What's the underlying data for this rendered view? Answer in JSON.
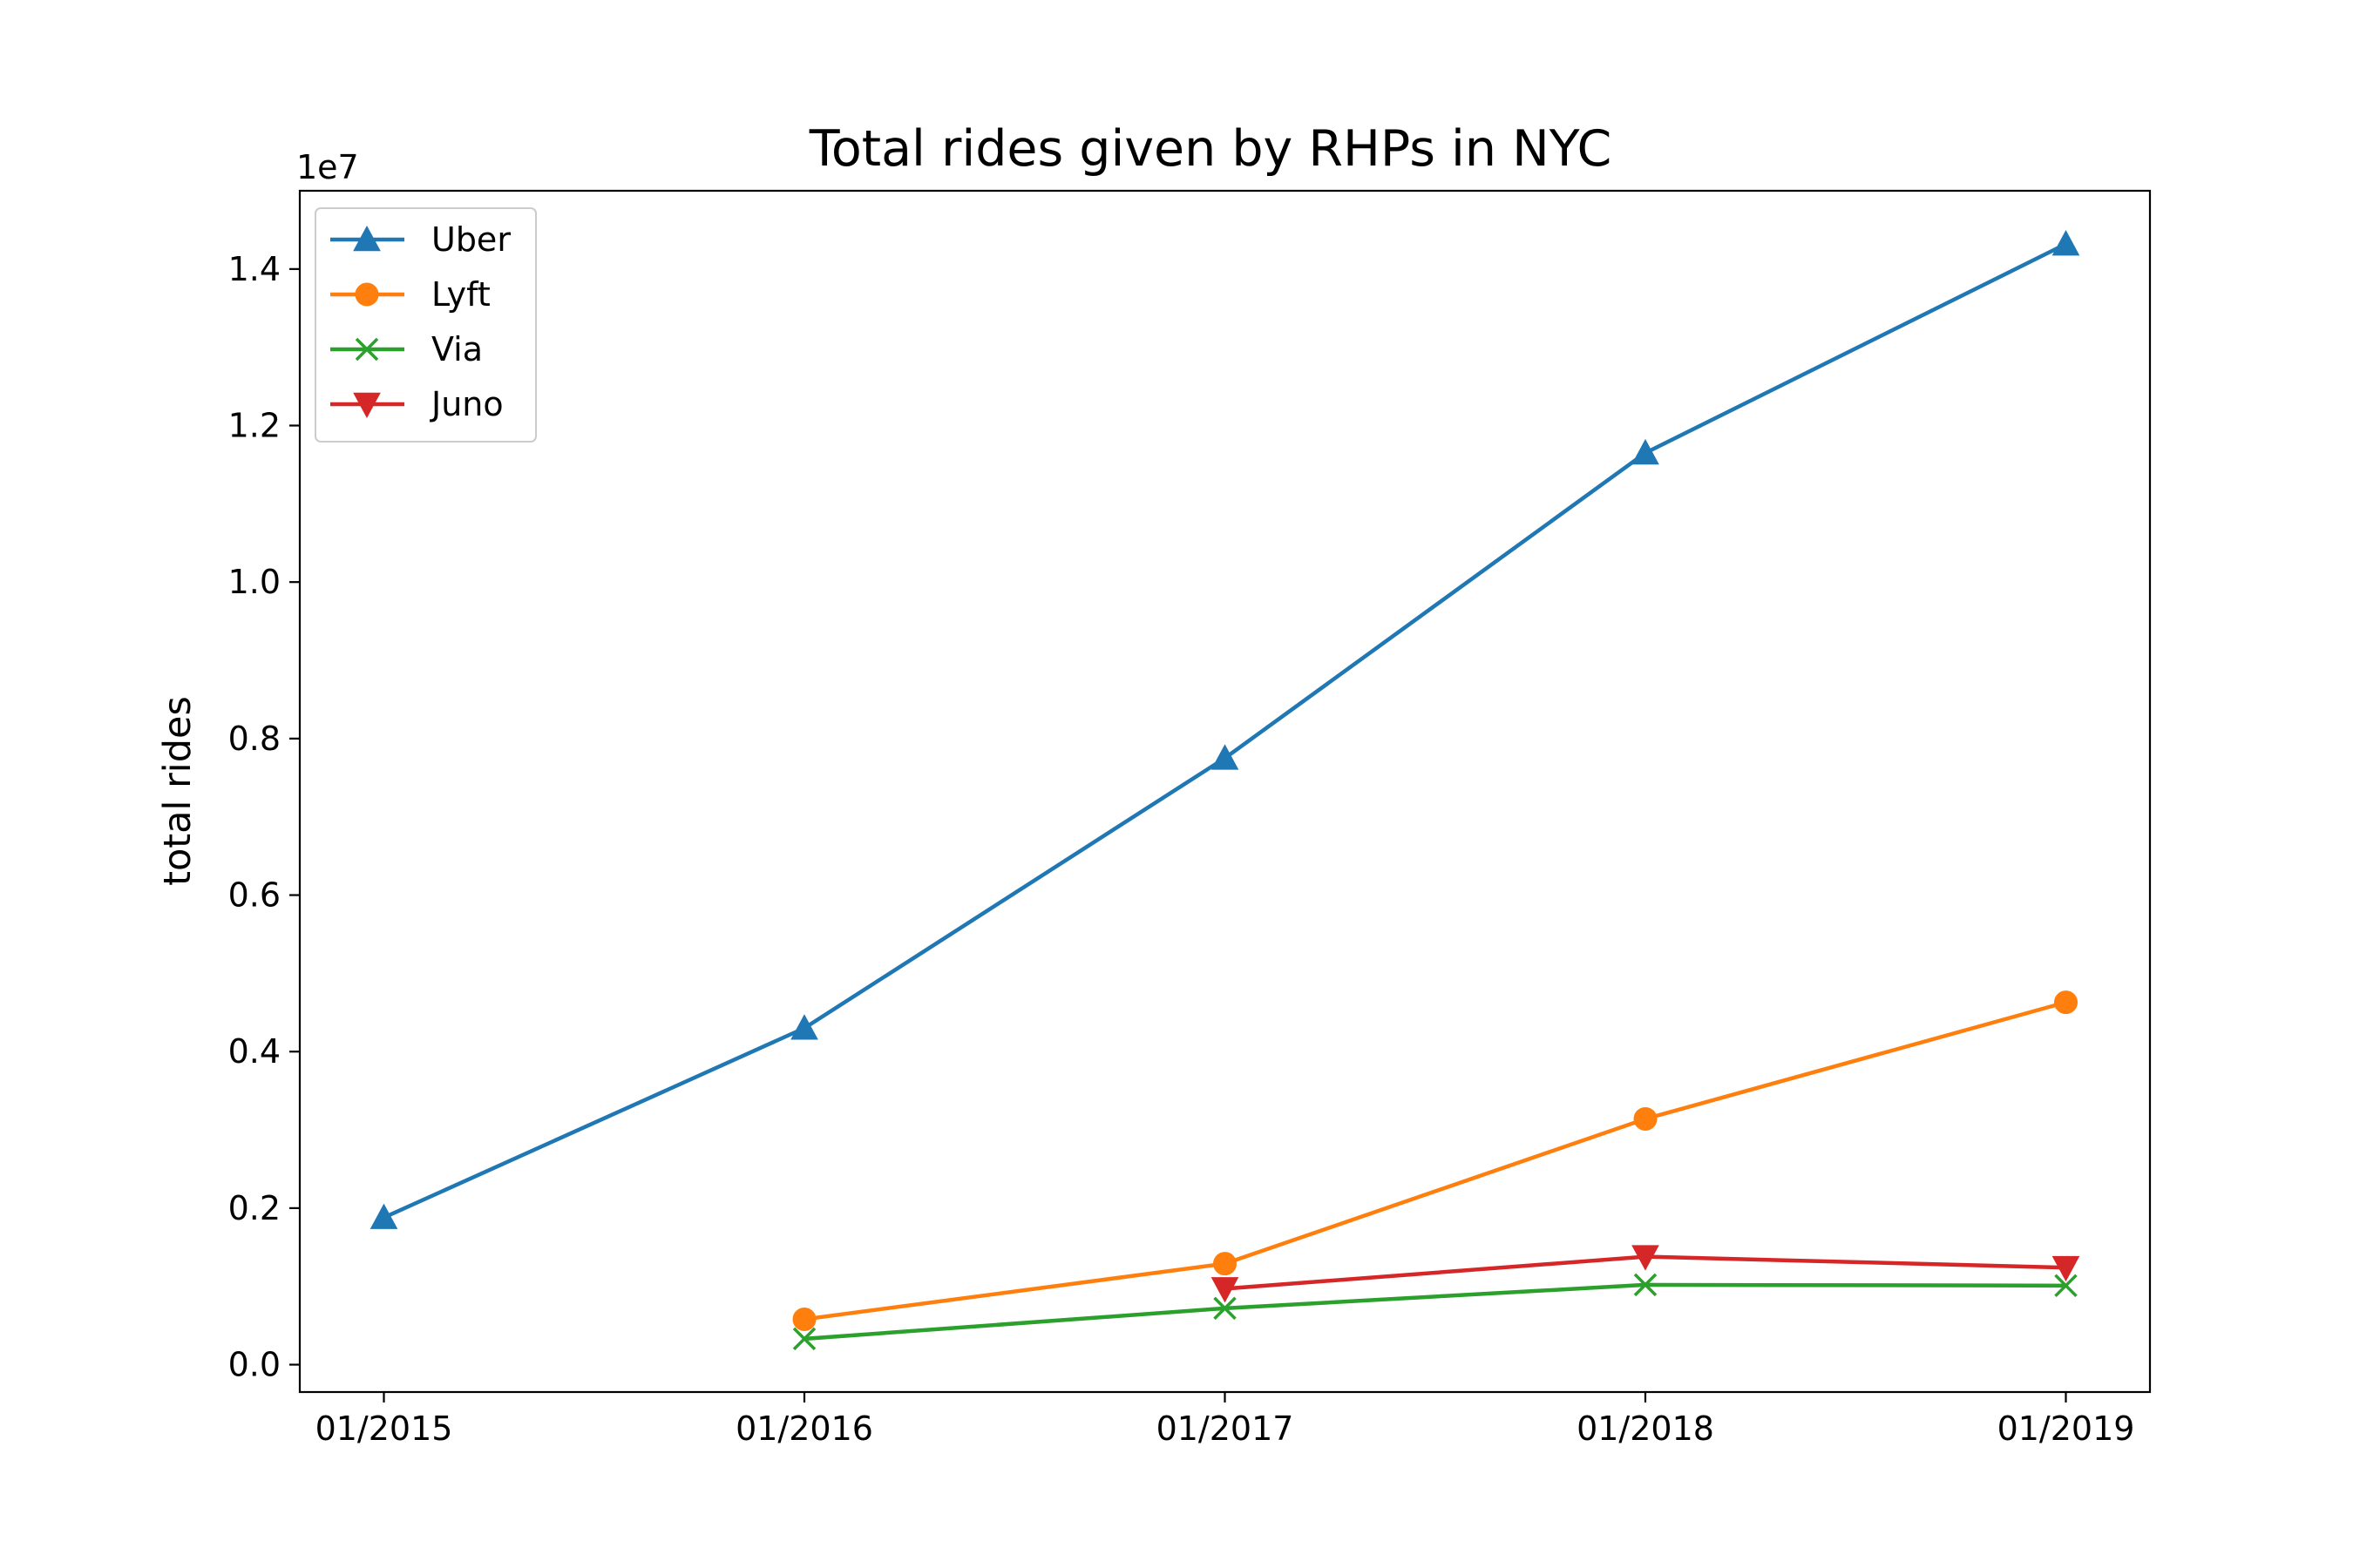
{
  "chart_data": {
    "type": "line",
    "title": "Total rides given by RHPs in NYC",
    "xlabel": "",
    "ylabel": "total rides",
    "y_offset_label": "1e7",
    "x": [
      "01/2015",
      "01/2016",
      "01/2017",
      "01/2018",
      "01/2019"
    ],
    "ylim": [
      -350000,
      15000000
    ],
    "yticks": [
      0,
      2000000,
      4000000,
      6000000,
      8000000,
      10000000,
      12000000,
      14000000
    ],
    "ytick_labels": [
      "0.0",
      "0.2",
      "0.4",
      "0.6",
      "0.8",
      "1.0",
      "1.2",
      "1.4"
    ],
    "legend_position": "upper-left",
    "grid": false,
    "series": [
      {
        "name": "Uber",
        "color": "#1f77b4",
        "marker": "triangle-up",
        "values": [
          1880000,
          4300000,
          7750000,
          11650000,
          14320000
        ]
      },
      {
        "name": "Lyft",
        "color": "#ff7f0e",
        "marker": "circle",
        "values": [
          null,
          580000,
          1290000,
          3140000,
          4630000
        ]
      },
      {
        "name": "Via",
        "color": "#2ca02c",
        "marker": "x",
        "values": [
          null,
          330000,
          720000,
          1020000,
          1010000
        ]
      },
      {
        "name": "Juno",
        "color": "#d62728",
        "marker": "triangle-down",
        "values": [
          null,
          null,
          970000,
          1380000,
          1240000
        ]
      }
    ]
  }
}
